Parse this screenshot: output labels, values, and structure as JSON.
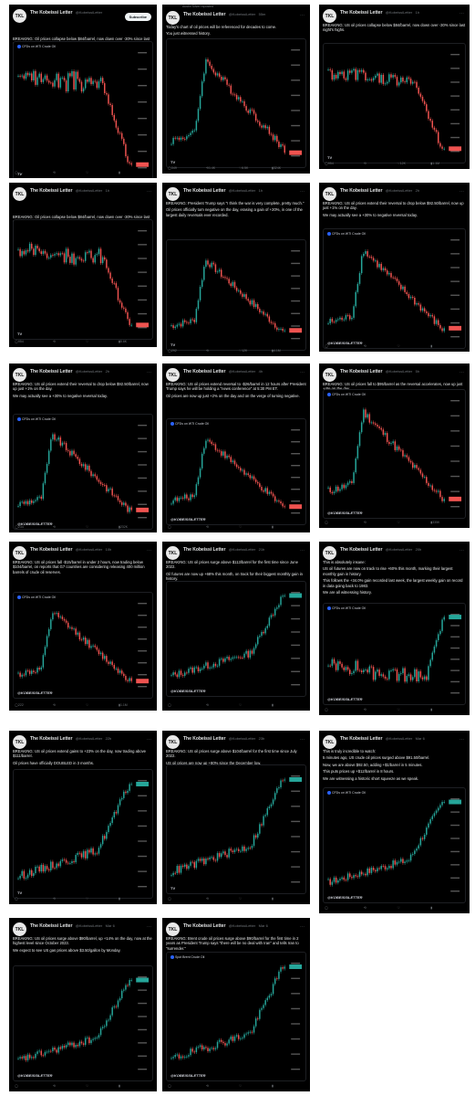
{
  "tweets": [
    {
      "name": "The Kobeissi Letter",
      "handle": "@KobeissiLetter",
      "time": "",
      "subscribe": "Subscribe",
      "text": [
        "BREAKING: Oil prices collapse below $84/barrel, now down over -30% since last night's highs."
      ],
      "chart_label": "CFDs on WTI Crude Oil",
      "trend": "down",
      "watermark": "TV",
      "actions": [
        "",
        "",
        "",
        ""
      ]
    },
    {
      "name": "The Kobeissi Letter",
      "handle": "@KobeissiLetter",
      "time": "55m",
      "repost": "Austin Silver reposted",
      "text": [
        "Today's chart of oil prices will be referenced for decades to come.",
        "You just witnessed history."
      ],
      "chart_label": "",
      "trend": "spikedown",
      "watermark": "",
      "actions": [
        "349",
        "1.4K",
        "6.5K",
        "324K"
      ]
    },
    {
      "name": "The Kobeissi Letter",
      "handle": "@KobeissiLetter",
      "time": "1h",
      "text": [
        "BREAKING: US oil prices collapse below $84/barrel, now down over -30% since last night's highs."
      ],
      "chart_label": "",
      "trend": "down",
      "watermark": "",
      "actions": [
        "954",
        "",
        "12K",
        "1.1M"
      ]
    },
    {
      "name": "The Kobeissi Letter",
      "handle": "@KobeissiLetter",
      "time": "1h",
      "text": [
        "BREAKING: Oil prices collapse below $84/barrel, now down over -30% since last night's highs."
      ],
      "chart_label": "",
      "trend": "down",
      "watermark": "",
      "actions": [
        "954",
        "",
        "",
        "5.6K"
      ]
    },
    {
      "name": "The Kobeissi Letter",
      "handle": "@KobeissiLetter",
      "time": "1h",
      "text": [
        "BREAKING: President Trump says \"I think the war is very complete, pretty much.\"",
        "Oil prices officially turn negative on the day, erasing a gain of +20%, in one of the largest daily reversals ever recorded."
      ],
      "chart_label": "",
      "trend": "spikedown",
      "watermark": "",
      "actions": [
        "292",
        "",
        "12K",
        "4.1M"
      ]
    },
    {
      "name": "The Kobeissi Letter",
      "handle": "@KobeissiLetter",
      "time": "2h",
      "text": [
        "BREAKING: US oil prices extend their reversal to drop below $92.50/barrel, now up just +1% on the day.",
        "We may actually see a +30% to negative reversal today."
      ],
      "chart_label": "CFDs on WTI Crude Oil",
      "trend": "spikedown",
      "watermark": "@KOBEISSILETTER",
      "actions": [
        "",
        "",
        "",
        ""
      ]
    },
    {
      "name": "The Kobeissi Letter",
      "handle": "@KobeissiLetter",
      "time": "2h",
      "text": [
        "BREAKING: US oil prices extend their reversal to drop below $92.50/barrel, now up just +1% on the day.",
        "We may actually see a +30% to negative reversal today."
      ],
      "chart_label": "CFDs on WTI Crude Oil",
      "trend": "spikedown",
      "watermark": "@KOBEISSILETTER",
      "actions": [
        "234",
        "",
        "",
        "232K"
      ]
    },
    {
      "name": "The Kobeissi Letter",
      "handle": "@KobeissiLetter",
      "time": "4h",
      "text": [
        "BREAKING: US oil prices extend reversal to -$26/barrel in 12 hours after President Trump says he will be holding a \"news conference\" at 5:30 PM ET.",
        "Oil prices are now up just +2% on the day and on the verge of turning negative."
      ],
      "chart_label": "CFDs on WTI Crude Oil",
      "trend": "spikedown",
      "watermark": "@KOBEISSILETTER",
      "actions": [
        "",
        "",
        "",
        ""
      ]
    },
    {
      "name": "The Kobeissi Letter",
      "handle": "@KobeissiLetter",
      "time": "5h",
      "text": [
        "BREAKING: US oil prices fall to $95/barrel as the reversal accelerates, now up just +4% on the day."
      ],
      "chart_label": "CFDs on WTI Crude Oil",
      "trend": "spikedown",
      "watermark": "@KOBEISSILETTER",
      "actions": [
        "",
        "",
        "",
        "335K"
      ]
    },
    {
      "name": "The Kobeissi Letter",
      "handle": "@KobeissiLetter",
      "time": "10h",
      "text": [
        "BREAKING: US oil prices fall -$15/barrel in under 2 hours, now trading below $104/barrel, on reports that G7 countries are considering releasing 400 million barrels of crude oil reserves."
      ],
      "chart_label": "CFDs on WTI Crude Oil",
      "trend": "spikedown",
      "watermark": "@KOBEISSILETTER",
      "actions": [
        "222",
        "",
        "",
        "1.1M"
      ]
    },
    {
      "name": "The Kobeissi Letter",
      "handle": "@KobeissiLetter",
      "time": "21h",
      "text": [
        "BREAKING: US oil prices surge above $113/barrel for the first time since June 2022.",
        "Oil futures are now up +68% this month, on track for their biggest monthly gain in history."
      ],
      "chart_label": "",
      "trend": "up",
      "watermark": "@KOBEISSILETTER",
      "actions": [
        "",
        "",
        "",
        ""
      ]
    },
    {
      "name": "The Kobeissi Letter",
      "handle": "@KobeissiLetter",
      "time": "20h",
      "text": [
        "This is absolutely insane:",
        "US oil futures are now on track to rise +60% this month, marking their largest monthly gain in history.",
        "This follows the +34.0% gain recorded last week, the largest weekly gain on record in data going back to 1983.",
        "We are all witnessing history."
      ],
      "chart_label": "CFDs on WTI Crude Oil",
      "trend": "upjump",
      "watermark": "@KOBEISSILETTER",
      "actions": [
        "",
        "",
        "",
        ""
      ]
    },
    {
      "name": "The Kobeissi Letter",
      "handle": "@KobeissiLetter",
      "time": "22h",
      "text": [
        "BREAKING: US oil prices extend gains to +23% on the day, now trading above $111/barrel.",
        "Oil prices have officially DOUBLED in 3 months."
      ],
      "chart_label": "",
      "trend": "up",
      "watermark": "",
      "actions": [
        "",
        "",
        "",
        ""
      ]
    },
    {
      "name": "The Kobeissi Letter",
      "handle": "@KobeissiLetter",
      "time": "23h",
      "text": [
        "BREAKING: US oil prices surge above $104/barrel for the first time since July 2022.",
        "US oil prices are now up +80% since the December low."
      ],
      "chart_label": "",
      "trend": "up",
      "watermark": "",
      "actions": [
        "",
        "",
        "",
        ""
      ]
    },
    {
      "name": "The Kobeissi Letter",
      "handle": "@KobeissiLetter",
      "time": "Mar 6",
      "text": [
        "This is truly incredible to watch:",
        "5 minutes ago, US crude oil prices surged above $91.50/barrel.",
        "Now, we are above $92.50, adding +$1/barrel in 5 minutes.",
        "This puts prices up +$12/barrel in 8 hours.",
        "We are witnessing a historic short squeeze as we speak."
      ],
      "chart_label": "CFDs on WTI Crude Oil",
      "trend": "up",
      "watermark": "@KOBEISSILETTER",
      "actions": [
        "",
        "",
        "",
        ""
      ]
    },
    {
      "name": "The Kobeissi Letter",
      "handle": "@KobeissiLetter",
      "time": "Mar 6",
      "text": [
        "BREAKING: US oil prices surge above $90/barrel, up +14% on the day, now at the highest level since October 2023.",
        "We expect to see US gas prices above $3.50/gallon by Monday."
      ],
      "chart_label": "",
      "trend": "up",
      "watermark": "@KOBEISSILETTER",
      "actions": [
        "",
        "",
        "",
        ""
      ]
    },
    {
      "name": "The Kobeissi Letter",
      "handle": "@KobeissiLetter",
      "time": "Mar 6",
      "text": [
        "BREAKING: Brent crude oil prices surge above $90/barrel for the first time in 2 years as President Trump says \"there will be no deal with Iran\" and tells Iran to \"surrender.\""
      ],
      "chart_label": "Spot Brent Crude Oil",
      "trend": "up",
      "watermark": "@KOBEISSILETTER",
      "actions": [
        "",
        "",
        "",
        ""
      ]
    }
  ],
  "colors": {
    "up": "#26a69a",
    "down": "#ef5350",
    "bg": "#000000",
    "text": "#e7e9ea",
    "muted": "#71767b",
    "price_tag": "#ef5350",
    "price_tag_up": "#26a69a"
  },
  "icons": [
    "reply-icon",
    "repost-icon",
    "like-icon",
    "views-icon",
    "more-icon"
  ]
}
